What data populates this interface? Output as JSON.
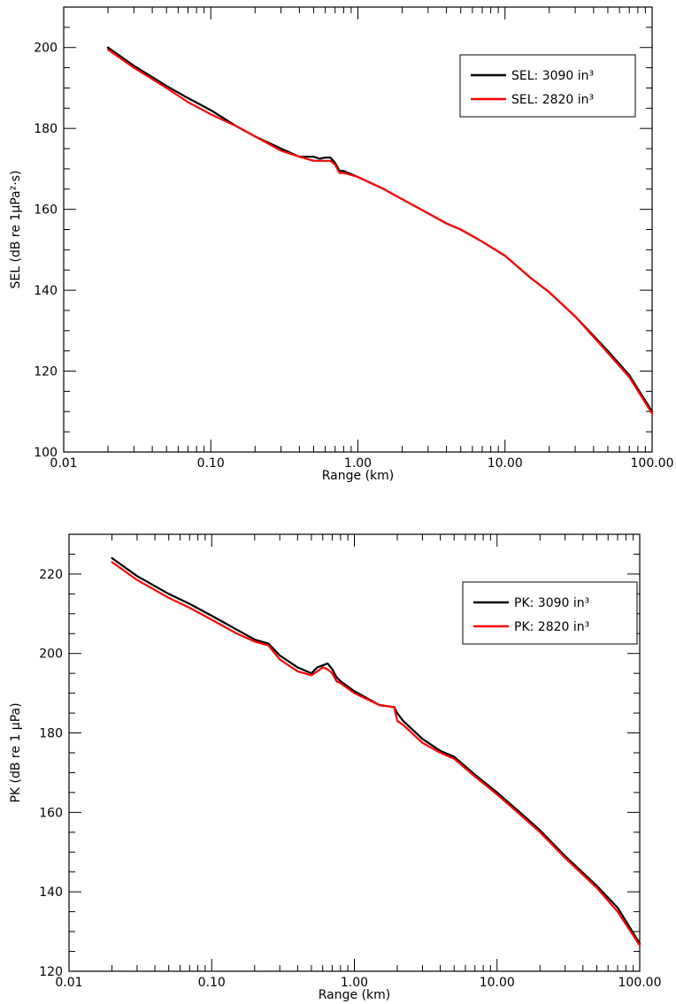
{
  "chart_data": [
    {
      "type": "line",
      "ylabel": "SEL (dB re 1µPa²·s)",
      "xlabel": "Range (km)",
      "xscale": "log",
      "xlim": [
        0.01,
        100
      ],
      "ylim": [
        100,
        210
      ],
      "x_ticklabels": [
        "0.01",
        "0.10",
        "1.00",
        "10.00",
        "100.00"
      ],
      "y_ticks": [
        100,
        120,
        140,
        160,
        180,
        200
      ],
      "legend_loc": "top-right",
      "grid": false,
      "series": [
        {
          "name": "SEL: 3090 in³",
          "color": "#000000",
          "x": [
            0.02,
            0.03,
            0.05,
            0.07,
            0.1,
            0.15,
            0.2,
            0.3,
            0.4,
            0.5,
            0.55,
            0.6,
            0.65,
            0.7,
            0.75,
            0.8,
            1.0,
            1.5,
            2.0,
            3.0,
            4.0,
            5.0,
            7.0,
            10.0,
            15.0,
            20.0,
            30.0,
            50.0,
            70.0,
            100.0
          ],
          "y": [
            200,
            195.5,
            190.5,
            187.5,
            184.5,
            180.5,
            178,
            175,
            173,
            173,
            172.5,
            172.8,
            172.8,
            171.5,
            169.5,
            169.5,
            168,
            165,
            162.5,
            159,
            156.5,
            155,
            152,
            148.5,
            143,
            139.5,
            133.5,
            125,
            119,
            110
          ]
        },
        {
          "name": "SEL: 2820 in³",
          "color": "#ff0000",
          "x": [
            0.02,
            0.03,
            0.05,
            0.07,
            0.1,
            0.15,
            0.2,
            0.3,
            0.4,
            0.5,
            0.55,
            0.6,
            0.65,
            0.7,
            0.75,
            0.8,
            1.0,
            1.5,
            2.0,
            3.0,
            4.0,
            5.0,
            7.0,
            10.0,
            15.0,
            20.0,
            30.0,
            50.0,
            70.0,
            100.0
          ],
          "y": [
            199.5,
            195,
            190,
            186.5,
            183.5,
            180.5,
            178,
            174.5,
            173,
            172,
            172,
            172,
            172,
            171,
            169,
            169,
            168,
            165,
            162.5,
            159,
            156.5,
            155,
            152,
            148.5,
            143,
            139.5,
            133.5,
            124.5,
            118.5,
            109.5
          ]
        }
      ]
    },
    {
      "type": "line",
      "ylabel": "PK (dB re 1 µPa)",
      "xlabel": "Range (km)",
      "xscale": "log",
      "xlim": [
        0.01,
        100
      ],
      "ylim": [
        120,
        230
      ],
      "x_ticklabels": [
        "0.01",
        "0.10",
        "1.00",
        "10.00",
        "100.00"
      ],
      "y_ticks": [
        120,
        140,
        160,
        180,
        200,
        220
      ],
      "legend_loc": "top-right",
      "grid": false,
      "series": [
        {
          "name": "PK: 3090 in³",
          "color": "#000000",
          "x": [
            0.02,
            0.03,
            0.05,
            0.07,
            0.1,
            0.15,
            0.2,
            0.25,
            0.3,
            0.4,
            0.5,
            0.55,
            0.6,
            0.65,
            0.7,
            0.75,
            0.8,
            1.0,
            1.5,
            1.9,
            2.0,
            2.2,
            3.0,
            4.0,
            5.0,
            7.0,
            10.0,
            15.0,
            20.0,
            30.0,
            50.0,
            70.0,
            100.0
          ],
          "y": [
            224,
            219.5,
            215,
            212.5,
            209.5,
            206,
            203.5,
            202.5,
            199.5,
            196.5,
            195,
            196.5,
            197,
            197.5,
            196,
            194,
            193,
            190.5,
            187,
            186.5,
            185,
            183,
            178.5,
            175.5,
            174,
            169.5,
            165,
            159.5,
            155.5,
            149,
            141.5,
            136,
            127
          ]
        },
        {
          "name": "PK: 2820 in³",
          "color": "#ff0000",
          "x": [
            0.02,
            0.03,
            0.05,
            0.07,
            0.1,
            0.15,
            0.2,
            0.25,
            0.3,
            0.4,
            0.5,
            0.55,
            0.6,
            0.65,
            0.7,
            0.75,
            0.8,
            1.0,
            1.5,
            1.9,
            2.0,
            2.2,
            3.0,
            4.0,
            5.0,
            7.0,
            10.0,
            15.0,
            20.0,
            30.0,
            50.0,
            70.0,
            100.0
          ],
          "y": [
            223,
            218.5,
            214,
            211.5,
            208.5,
            205,
            203,
            202,
            198.5,
            195.5,
            194.5,
            195.5,
            196.5,
            196,
            195,
            193,
            192.5,
            190,
            187,
            186.5,
            183,
            182,
            177.5,
            175,
            173.5,
            169,
            164.5,
            159,
            155,
            148.5,
            141,
            135,
            126.5
          ]
        }
      ]
    }
  ]
}
